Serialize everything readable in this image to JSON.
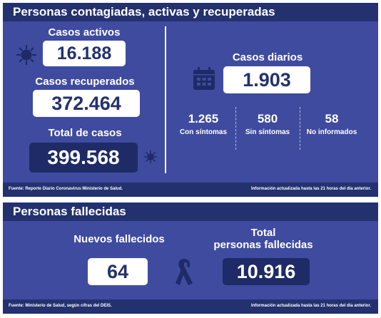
{
  "panel1": {
    "title": "Personas contagiadas, activas y recuperadas",
    "activos": {
      "label": "Casos activos",
      "value": "16.188"
    },
    "recuperados": {
      "label": "Casos recuperados",
      "value": "372.464"
    },
    "total": {
      "label": "Total de casos",
      "value": "399.568"
    },
    "diarios": {
      "label": "Casos diarios",
      "value": "1.903",
      "breakdown": [
        {
          "value": "1.265",
          "label": "Con síntomas"
        },
        {
          "value": "580",
          "label": "Sin síntomas"
        },
        {
          "value": "58",
          "label": "No informados"
        }
      ]
    },
    "footer_left": "Fuente: Reporte Diario Coronavirus Ministerio de Salud.",
    "footer_right": "Información actualizada hasta las 21 horas  del día anterior."
  },
  "panel2": {
    "title": "Personas fallecidas",
    "nuevos": {
      "label": "Nuevos fallecidos",
      "value": "64"
    },
    "total": {
      "label_line1": "Total",
      "label_line2": "personas fallecidas",
      "value": "10.916"
    },
    "footer_left": "Fuente: Ministerio de Salud, según cifras del DEIS.",
    "footer_right": "Información actualizada hasta las 21 horas  del día anterior."
  },
  "icons": [
    "virus-icon",
    "calendar-icon",
    "ribbon-icon"
  ],
  "colors": {
    "panel": "#3f4b9f",
    "header": "#23316f",
    "dark_box": "#1e2b66",
    "text_dark": "#23316f"
  }
}
